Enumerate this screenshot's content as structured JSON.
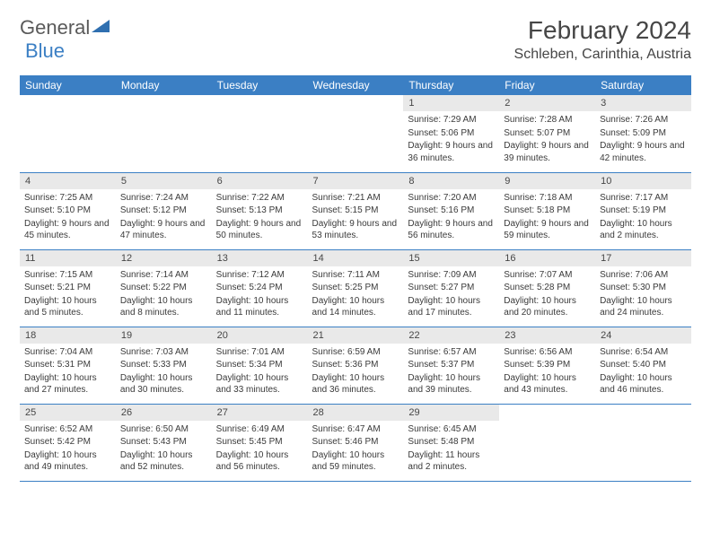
{
  "logo": {
    "part1": "General",
    "part2": "Blue"
  },
  "title": "February 2024",
  "location": "Schleben, Carinthia, Austria",
  "colors": {
    "header_bg": "#3b7fc4",
    "header_text": "#ffffff",
    "daynum_bg": "#e9e9e9",
    "text": "#464646",
    "border": "#3b7fc4",
    "logo_gray": "#5a5a5a",
    "logo_blue": "#3b7fc4"
  },
  "dayHeaders": [
    "Sunday",
    "Monday",
    "Tuesday",
    "Wednesday",
    "Thursday",
    "Friday",
    "Saturday"
  ],
  "leadingEmpty": 4,
  "days": [
    {
      "n": 1,
      "sr": "7:29 AM",
      "ss": "5:06 PM",
      "dl": "9 hours and 36 minutes."
    },
    {
      "n": 2,
      "sr": "7:28 AM",
      "ss": "5:07 PM",
      "dl": "9 hours and 39 minutes."
    },
    {
      "n": 3,
      "sr": "7:26 AM",
      "ss": "5:09 PM",
      "dl": "9 hours and 42 minutes."
    },
    {
      "n": 4,
      "sr": "7:25 AM",
      "ss": "5:10 PM",
      "dl": "9 hours and 45 minutes."
    },
    {
      "n": 5,
      "sr": "7:24 AM",
      "ss": "5:12 PM",
      "dl": "9 hours and 47 minutes."
    },
    {
      "n": 6,
      "sr": "7:22 AM",
      "ss": "5:13 PM",
      "dl": "9 hours and 50 minutes."
    },
    {
      "n": 7,
      "sr": "7:21 AM",
      "ss": "5:15 PM",
      "dl": "9 hours and 53 minutes."
    },
    {
      "n": 8,
      "sr": "7:20 AM",
      "ss": "5:16 PM",
      "dl": "9 hours and 56 minutes."
    },
    {
      "n": 9,
      "sr": "7:18 AM",
      "ss": "5:18 PM",
      "dl": "9 hours and 59 minutes."
    },
    {
      "n": 10,
      "sr": "7:17 AM",
      "ss": "5:19 PM",
      "dl": "10 hours and 2 minutes."
    },
    {
      "n": 11,
      "sr": "7:15 AM",
      "ss": "5:21 PM",
      "dl": "10 hours and 5 minutes."
    },
    {
      "n": 12,
      "sr": "7:14 AM",
      "ss": "5:22 PM",
      "dl": "10 hours and 8 minutes."
    },
    {
      "n": 13,
      "sr": "7:12 AM",
      "ss": "5:24 PM",
      "dl": "10 hours and 11 minutes."
    },
    {
      "n": 14,
      "sr": "7:11 AM",
      "ss": "5:25 PM",
      "dl": "10 hours and 14 minutes."
    },
    {
      "n": 15,
      "sr": "7:09 AM",
      "ss": "5:27 PM",
      "dl": "10 hours and 17 minutes."
    },
    {
      "n": 16,
      "sr": "7:07 AM",
      "ss": "5:28 PM",
      "dl": "10 hours and 20 minutes."
    },
    {
      "n": 17,
      "sr": "7:06 AM",
      "ss": "5:30 PM",
      "dl": "10 hours and 24 minutes."
    },
    {
      "n": 18,
      "sr": "7:04 AM",
      "ss": "5:31 PM",
      "dl": "10 hours and 27 minutes."
    },
    {
      "n": 19,
      "sr": "7:03 AM",
      "ss": "5:33 PM",
      "dl": "10 hours and 30 minutes."
    },
    {
      "n": 20,
      "sr": "7:01 AM",
      "ss": "5:34 PM",
      "dl": "10 hours and 33 minutes."
    },
    {
      "n": 21,
      "sr": "6:59 AM",
      "ss": "5:36 PM",
      "dl": "10 hours and 36 minutes."
    },
    {
      "n": 22,
      "sr": "6:57 AM",
      "ss": "5:37 PM",
      "dl": "10 hours and 39 minutes."
    },
    {
      "n": 23,
      "sr": "6:56 AM",
      "ss": "5:39 PM",
      "dl": "10 hours and 43 minutes."
    },
    {
      "n": 24,
      "sr": "6:54 AM",
      "ss": "5:40 PM",
      "dl": "10 hours and 46 minutes."
    },
    {
      "n": 25,
      "sr": "6:52 AM",
      "ss": "5:42 PM",
      "dl": "10 hours and 49 minutes."
    },
    {
      "n": 26,
      "sr": "6:50 AM",
      "ss": "5:43 PM",
      "dl": "10 hours and 52 minutes."
    },
    {
      "n": 27,
      "sr": "6:49 AM",
      "ss": "5:45 PM",
      "dl": "10 hours and 56 minutes."
    },
    {
      "n": 28,
      "sr": "6:47 AM",
      "ss": "5:46 PM",
      "dl": "10 hours and 59 minutes."
    },
    {
      "n": 29,
      "sr": "6:45 AM",
      "ss": "5:48 PM",
      "dl": "11 hours and 2 minutes."
    }
  ],
  "labels": {
    "sunrise": "Sunrise:",
    "sunset": "Sunset:",
    "daylight": "Daylight:"
  }
}
